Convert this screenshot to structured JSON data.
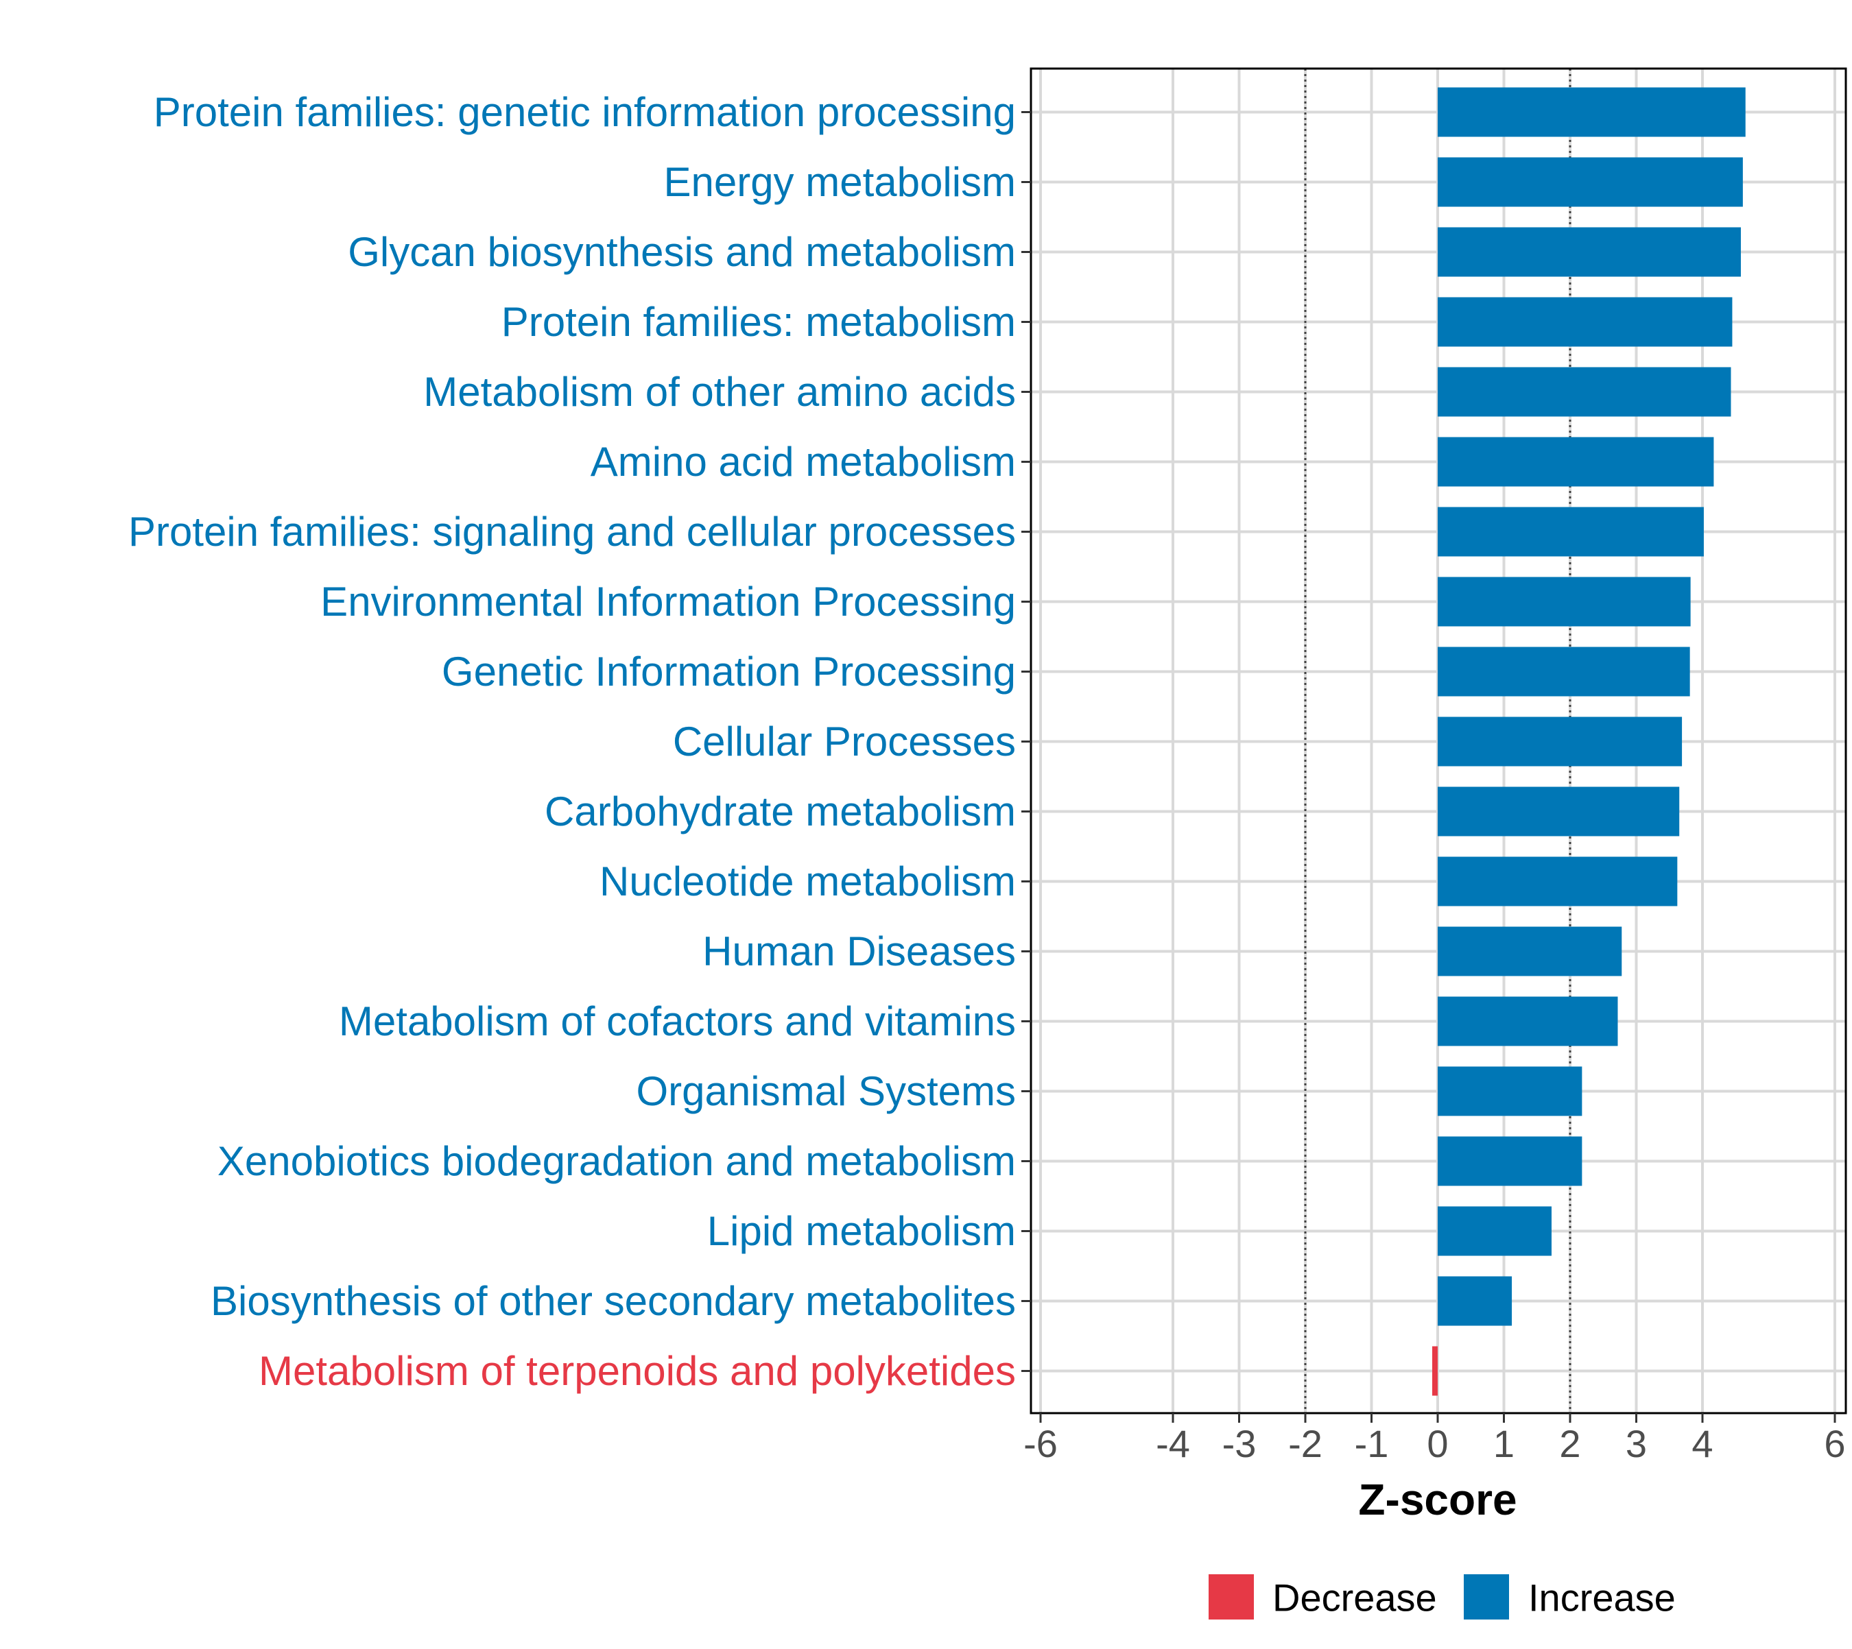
{
  "chart_data": {
    "type": "bar",
    "orientation": "horizontal",
    "xlabel": "Z-score",
    "ylabel": "",
    "xlim": [
      -6.1,
      6.1
    ],
    "xticks": [
      -6,
      -4,
      -3,
      -2,
      -1,
      0,
      1,
      2,
      3,
      4,
      6
    ],
    "xtick_labels": [
      "-6",
      "-4",
      "-3",
      "-2",
      "-1",
      "0",
      "1",
      "2",
      "3",
      "4",
      "6"
    ],
    "reference_lines": [
      -2,
      2
    ],
    "grid": true,
    "categories": [
      "Protein families: genetic information processing",
      "Energy metabolism",
      "Glycan biosynthesis and metabolism",
      "Protein families: metabolism",
      "Metabolism of other amino acids",
      "Amino acid metabolism",
      "Protein families: signaling and cellular processes",
      "Environmental Information Processing",
      "Genetic Information Processing",
      "Cellular Processes",
      "Carbohydrate metabolism",
      "Nucleotide metabolism",
      "Human Diseases",
      "Metabolism of cofactors and vitamins",
      "Organismal Systems",
      "Xenobiotics biodegradation and metabolism",
      "Lipid metabolism",
      "Biosynthesis of other secondary metabolites",
      "Metabolism of terpenoids and polyketides"
    ],
    "values": [
      4.65,
      4.61,
      4.58,
      4.45,
      4.43,
      4.17,
      4.02,
      3.82,
      3.81,
      3.69,
      3.65,
      3.62,
      2.78,
      2.72,
      2.18,
      2.18,
      1.72,
      1.12,
      -0.06
    ],
    "groups": [
      "Increase",
      "Increase",
      "Increase",
      "Increase",
      "Increase",
      "Increase",
      "Increase",
      "Increase",
      "Increase",
      "Increase",
      "Increase",
      "Increase",
      "Increase",
      "Increase",
      "Increase",
      "Increase",
      "Increase",
      "Increase",
      "Decrease"
    ],
    "legend": {
      "position": "bottom",
      "items": [
        {
          "label": "Decrease",
          "color": "#E63946"
        },
        {
          "label": "Increase",
          "color": "#0077B6"
        }
      ]
    },
    "colors": {
      "Increase": "#0077B6",
      "Decrease": "#E63946"
    }
  }
}
